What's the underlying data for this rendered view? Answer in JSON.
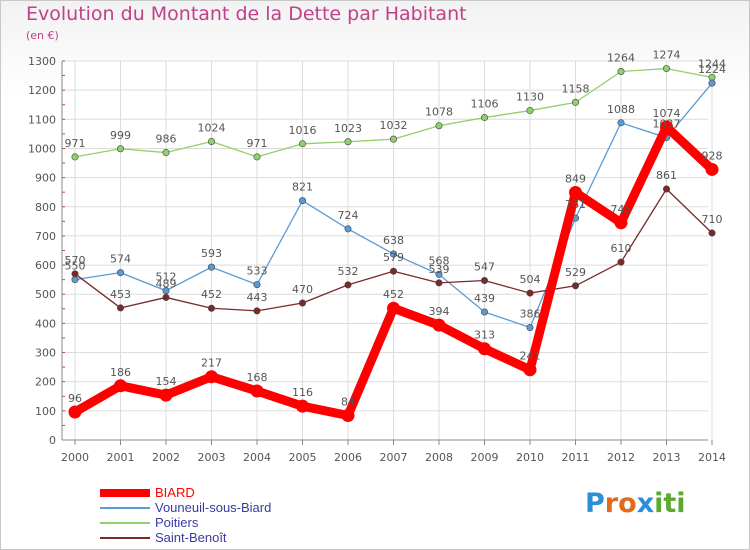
{
  "header": {
    "title": "Evolution du Montant de la Dette par Habitant",
    "subtitle": "(en €)"
  },
  "logo": {
    "text": "Proxiti",
    "letters": [
      "P",
      "r",
      "o",
      "x",
      "i",
      "t",
      "i"
    ],
    "colors": [
      "#2a8fd6",
      "#e06b1f",
      "#e06b1f",
      "#2a8fd6",
      "#5aaa2e",
      "#5aaa2e",
      "#5aaa2e"
    ]
  },
  "chart_data": {
    "type": "line",
    "title": "Evolution du Montant de la Dette par Habitant",
    "subtitle": "(en €)",
    "xlabel": "",
    "ylabel": "",
    "categories": [
      "2000",
      "2001",
      "2002",
      "2003",
      "2004",
      "2005",
      "2006",
      "2007",
      "2008",
      "2009",
      "2010",
      "2011",
      "2012",
      "2013",
      "2014"
    ],
    "ylim": [
      0,
      1300
    ],
    "yticks": [
      0,
      100,
      200,
      300,
      400,
      500,
      600,
      700,
      800,
      900,
      1000,
      1100,
      1200,
      1300
    ],
    "grid": true,
    "legend_position": "bottom-left",
    "series": [
      {
        "name": "BIARD",
        "color": "#ff0000",
        "values": [
          96,
          186,
          154,
          217,
          168,
          116,
          84,
          452,
          394,
          313,
          241,
          849,
          745,
          1074,
          928
        ]
      },
      {
        "name": "Vouneuil-sous-Biard",
        "color": "#5b9bd5",
        "values": [
          550,
          574,
          512,
          593,
          533,
          821,
          724,
          638,
          568,
          439,
          386,
          761,
          1088,
          1037,
          1224
        ]
      },
      {
        "name": "Poitiers",
        "color": "#8fd16a",
        "values": [
          971,
          999,
          986,
          1024,
          971,
          1016,
          1023,
          1032,
          1078,
          1106,
          1130,
          1158,
          1264,
          1274,
          1244
        ]
      },
      {
        "name": "Saint-Benoît",
        "color": "#7a2a2a",
        "values": [
          570,
          453,
          489,
          452,
          443,
          470,
          532,
          579,
          539,
          547,
          504,
          529,
          610,
          861,
          710
        ]
      }
    ]
  }
}
